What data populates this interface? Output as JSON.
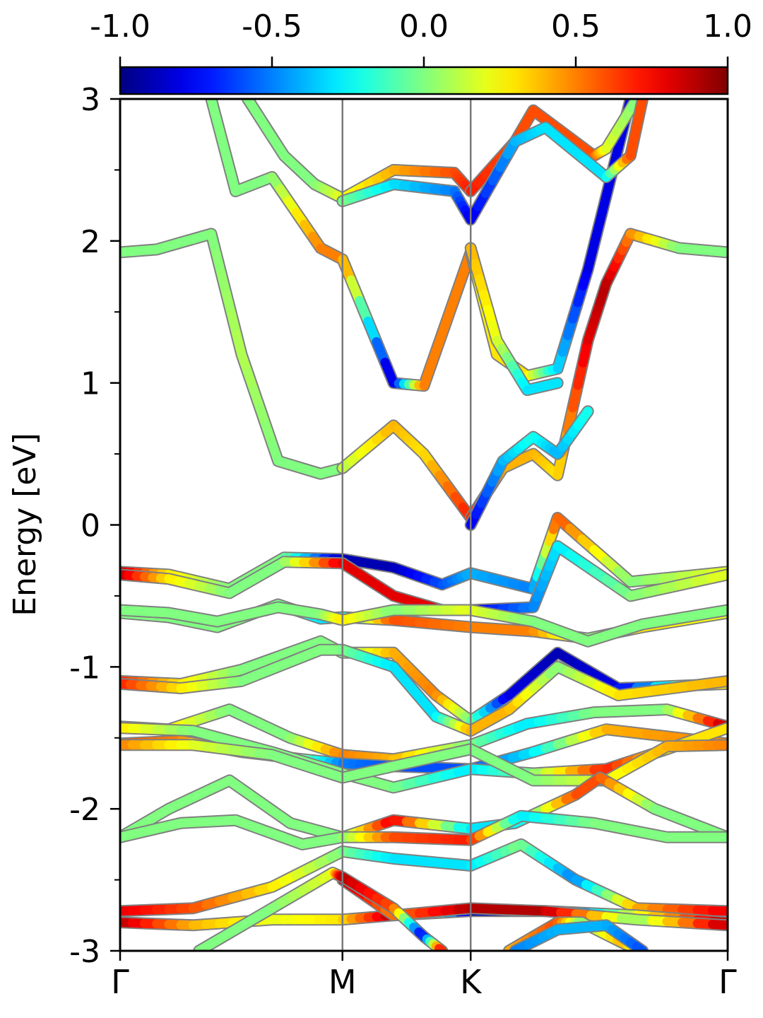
{
  "chart_data": {
    "type": "line",
    "title": "",
    "xlabel": "",
    "ylabel": "Energy [eV]",
    "ylim": [
      -3,
      3
    ],
    "y_ticks": [
      -3,
      -2,
      -1,
      0,
      1,
      2,
      3
    ],
    "y_tick_labels": [
      "-3",
      "-2",
      "-1",
      "0",
      "1",
      "2",
      "3"
    ],
    "xlim": [
      0,
      1
    ],
    "k_points": [
      {
        "label": "Γ",
        "x": 0.0
      },
      {
        "label": "M",
        "x": 0.366
      },
      {
        "label": "K",
        "x": 0.577
      },
      {
        "label": "Γ",
        "x": 1.0
      }
    ],
    "colorbar": {
      "min": -1.0,
      "max": 1.0,
      "ticks": [
        -1.0,
        -0.5,
        0.0,
        0.5,
        1.0
      ],
      "tick_labels": [
        "-1.0",
        "-0.5",
        "0.0",
        "0.5",
        "1.0"
      ],
      "colormap": "jet"
    },
    "series": [
      {
        "x": [
          0.0,
          0.06,
          0.15,
          0.2,
          0.26,
          0.33,
          0.366
        ],
        "y": [
          1.92,
          1.94,
          2.05,
          1.2,
          0.45,
          0.36,
          0.4
        ],
        "c": [
          0.0,
          0.0,
          0.0,
          0.1,
          0.0,
          0.0,
          0.0
        ]
      },
      {
        "x": [
          0.366,
          0.45,
          0.5,
          0.577
        ],
        "y": [
          0.4,
          0.7,
          0.5,
          0.05
        ],
        "c": [
          0.1,
          0.4,
          0.3,
          0.7
        ]
      },
      {
        "x": [
          0.577,
          0.63,
          0.68,
          0.72,
          0.77,
          0.8,
          0.84,
          0.92,
          1.0
        ],
        "y": [
          0.05,
          0.4,
          0.5,
          0.35,
          1.3,
          1.7,
          2.05,
          1.95,
          1.92
        ],
        "c": [
          0.7,
          0.4,
          0.4,
          0.3,
          0.8,
          0.9,
          0.5,
          0.0,
          0.0
        ]
      },
      {
        "x": [
          0.577,
          0.63,
          0.68,
          0.72,
          0.77
        ],
        "y": [
          0.0,
          0.45,
          0.62,
          0.5,
          0.8
        ],
        "c": [
          -0.8,
          -0.4,
          -0.2,
          -0.4,
          -0.2
        ]
      },
      {
        "x": [
          0.15,
          0.19,
          0.25,
          0.33,
          0.366,
          0.45,
          0.5,
          0.577
        ],
        "y": [
          3.0,
          2.35,
          2.45,
          1.95,
          1.87,
          1.0,
          0.98,
          1.92
        ],
        "c": [
          0.0,
          0.0,
          0.0,
          0.5,
          0.5,
          -0.9,
          0.5,
          0.5
        ]
      },
      {
        "x": [
          0.577,
          0.62,
          0.67,
          0.72,
          0.77,
          0.84
        ],
        "y": [
          1.92,
          1.2,
          1.05,
          1.1,
          1.8,
          3.0
        ],
        "c": [
          0.2,
          0.3,
          0.3,
          -0.3,
          -0.8,
          -0.8
        ]
      },
      {
        "x": [
          0.577,
          0.62,
          0.67,
          0.72
        ],
        "y": [
          1.95,
          1.3,
          0.95,
          1.0
        ],
        "c": [
          0.4,
          0.2,
          -0.3,
          -0.3
        ]
      },
      {
        "x": [
          0.21,
          0.27,
          0.32,
          0.366,
          0.45,
          0.55,
          0.577
        ],
        "y": [
          3.0,
          2.6,
          2.4,
          2.3,
          2.5,
          2.48,
          2.35
        ],
        "c": [
          0.0,
          0.0,
          0.0,
          0.2,
          0.4,
          0.6,
          0.7
        ]
      },
      {
        "x": [
          0.577,
          0.65,
          0.68,
          0.78,
          0.8,
          0.85
        ],
        "y": [
          2.35,
          2.7,
          2.92,
          2.6,
          2.65,
          3.0
        ],
        "c": [
          0.7,
          0.6,
          0.6,
          0.6,
          0.2,
          0.0
        ]
      },
      {
        "x": [
          0.366,
          0.45,
          0.55,
          0.577,
          0.65,
          0.7,
          0.8,
          0.84,
          0.86
        ],
        "y": [
          2.28,
          2.4,
          2.35,
          2.15,
          2.7,
          2.8,
          2.45,
          2.6,
          3.0
        ],
        "c": [
          0.0,
          -0.3,
          -0.5,
          -0.8,
          -0.4,
          -0.3,
          -0.3,
          0.6,
          0.6
        ]
      },
      {
        "x": [
          0.0,
          0.08,
          0.18,
          0.27,
          0.366,
          0.45,
          0.53,
          0.577,
          0.68,
          0.72,
          0.84,
          1.0
        ],
        "y": [
          -0.33,
          -0.35,
          -0.45,
          -0.23,
          -0.24,
          -0.3,
          -0.42,
          -0.34,
          -0.45,
          0.05,
          -0.4,
          -0.33
        ],
        "c": [
          0.9,
          0.3,
          0.0,
          0.0,
          -0.9,
          -0.9,
          -0.6,
          -0.4,
          -0.5,
          0.6,
          0.0,
          0.2
        ]
      },
      {
        "x": [
          0.0,
          0.08,
          0.18,
          0.27,
          0.366,
          0.45,
          0.53,
          0.577,
          0.68,
          0.72,
          0.84,
          1.0
        ],
        "y": [
          -0.35,
          -0.38,
          -0.48,
          -0.26,
          -0.27,
          -0.5,
          -0.6,
          -0.6,
          -0.58,
          -0.15,
          -0.5,
          -0.35
        ],
        "c": [
          0.9,
          0.3,
          0.0,
          0.0,
          0.8,
          0.8,
          0.8,
          -0.8,
          -0.5,
          -0.3,
          0.0,
          0.2
        ]
      },
      {
        "x": [
          0.0,
          0.08,
          0.16,
          0.26,
          0.33,
          0.366,
          0.45,
          0.577,
          0.68,
          0.77,
          0.86,
          1.0
        ],
        "y": [
          -0.62,
          -0.65,
          -0.72,
          -0.56,
          -0.66,
          -0.65,
          -0.67,
          -0.72,
          -0.75,
          -0.8,
          -0.72,
          -0.62
        ],
        "c": [
          0.0,
          0.0,
          0.0,
          0.0,
          -0.3,
          -0.3,
          0.6,
          0.5,
          0.5,
          0.0,
          0.3,
          0.2
        ]
      },
      {
        "x": [
          0.0,
          0.08,
          0.16,
          0.26,
          0.33,
          0.366,
          0.45,
          0.577,
          0.68,
          0.77,
          0.86,
          1.0
        ],
        "y": [
          -0.6,
          -0.62,
          -0.68,
          -0.58,
          -0.63,
          -0.67,
          -0.6,
          -0.6,
          -0.68,
          -0.82,
          -0.7,
          -0.6
        ],
        "c": [
          0.0,
          0.0,
          0.0,
          0.0,
          0.0,
          0.3,
          0.0,
          0.2,
          0.0,
          0.0,
          0.0,
          0.0
        ]
      },
      {
        "x": [
          0.0,
          0.1,
          0.2,
          0.33,
          0.366,
          0.45,
          0.52,
          0.577,
          0.64,
          0.72,
          0.82,
          1.0
        ],
        "y": [
          -1.1,
          -1.12,
          -1.02,
          -0.82,
          -0.9,
          -0.9,
          -1.2,
          -1.38,
          -1.2,
          -0.9,
          -1.15,
          -1.12
        ],
        "c": [
          0.7,
          0.3,
          0.0,
          0.0,
          0.0,
          0.4,
          0.5,
          0.0,
          -0.8,
          -0.9,
          -0.8,
          0.4
        ]
      },
      {
        "x": [
          0.0,
          0.1,
          0.2,
          0.33,
          0.366,
          0.45,
          0.52,
          0.577,
          0.64,
          0.72,
          0.82,
          1.0
        ],
        "y": [
          -1.12,
          -1.15,
          -1.1,
          -0.88,
          -0.88,
          -1.0,
          -1.35,
          -1.45,
          -1.3,
          -1.0,
          -1.2,
          -1.1
        ],
        "c": [
          0.7,
          0.3,
          0.0,
          0.0,
          0.0,
          -0.3,
          -0.3,
          0.4,
          0.4,
          0.0,
          0.3,
          0.4
        ]
      },
      {
        "x": [
          0.0,
          0.08,
          0.18,
          0.28,
          0.366,
          0.45,
          0.577,
          0.67,
          0.78,
          0.9,
          1.0
        ],
        "y": [
          -1.42,
          -1.44,
          -1.3,
          -1.5,
          -1.62,
          -1.65,
          -1.55,
          -1.4,
          -1.32,
          -1.3,
          -1.42
        ],
        "c": [
          0.9,
          0.3,
          0.0,
          0.0,
          0.5,
          0.4,
          0.0,
          -0.3,
          0.0,
          0.0,
          0.9
        ]
      },
      {
        "x": [
          0.0,
          0.1,
          0.2,
          0.3,
          0.366,
          0.45,
          0.577,
          0.68,
          0.8,
          1.0
        ],
        "y": [
          -1.54,
          -1.52,
          -1.6,
          -1.65,
          -1.68,
          -1.7,
          -1.72,
          -1.6,
          -1.44,
          -1.54
        ],
        "c": [
          0.6,
          0.5,
          0.0,
          0.0,
          -0.5,
          -0.6,
          -0.6,
          -0.3,
          0.4,
          0.5
        ]
      },
      {
        "x": [
          0.0,
          0.12,
          0.25,
          0.366,
          0.45,
          0.577,
          0.68,
          0.8,
          0.9,
          1.0
        ],
        "y": [
          -1.43,
          -1.45,
          -1.6,
          -1.75,
          -1.85,
          -1.72,
          -1.75,
          -1.72,
          -1.58,
          -1.43
        ],
        "c": [
          0.3,
          0.0,
          0.0,
          0.0,
          0.0,
          -0.3,
          0.0,
          0.7,
          0.3,
          0.3
        ]
      },
      {
        "x": [
          0.0,
          0.12,
          0.25,
          0.366,
          0.45,
          0.577,
          0.68,
          0.8,
          0.9,
          1.0
        ],
        "y": [
          -1.55,
          -1.55,
          -1.62,
          -1.78,
          -1.7,
          -1.58,
          -1.8,
          -1.8,
          -1.56,
          -1.55
        ],
        "c": [
          0.5,
          0.2,
          0.0,
          0.0,
          0.0,
          0.0,
          0.0,
          0.2,
          0.4,
          0.5
        ]
      },
      {
        "x": [
          0.0,
          0.08,
          0.18,
          0.28,
          0.366,
          0.45,
          0.577,
          0.65,
          0.75,
          0.79,
          0.88,
          1.0
        ],
        "y": [
          -2.2,
          -2.0,
          -1.8,
          -2.1,
          -2.2,
          -2.08,
          -2.14,
          -2.1,
          -1.9,
          -1.78,
          -2.0,
          -2.2
        ],
        "c": [
          0.0,
          0.0,
          0.0,
          0.0,
          0.0,
          0.8,
          -0.3,
          -0.3,
          0.6,
          0.6,
          0.0,
          0.0
        ]
      },
      {
        "x": [
          0.0,
          0.1,
          0.19,
          0.3,
          0.366,
          0.45,
          0.577,
          0.66,
          0.78,
          0.9,
          1.0
        ],
        "y": [
          -2.2,
          -2.1,
          -2.08,
          -2.25,
          -2.2,
          -2.2,
          -2.22,
          -2.05,
          -2.1,
          -2.2,
          -2.2
        ],
        "c": [
          0.0,
          0.0,
          0.0,
          0.0,
          0.0,
          0.6,
          0.7,
          -0.3,
          0.0,
          0.0,
          0.0
        ]
      },
      {
        "x": [
          0.0,
          0.12,
          0.25,
          0.366,
          0.45,
          0.577,
          0.66,
          0.75,
          0.85,
          1.0
        ],
        "y": [
          -2.72,
          -2.7,
          -2.55,
          -2.3,
          -2.35,
          -2.4,
          -2.25,
          -2.5,
          -2.7,
          -2.72
        ],
        "c": [
          0.8,
          0.6,
          0.3,
          0.0,
          -0.3,
          -0.3,
          0.0,
          -0.5,
          0.4,
          0.8
        ]
      },
      {
        "x": [
          0.0,
          0.12,
          0.25,
          0.366,
          0.45,
          0.577,
          0.7,
          0.85,
          1.0
        ],
        "y": [
          -2.8,
          -2.82,
          -2.78,
          -2.78,
          -2.75,
          -2.72,
          -2.72,
          -2.75,
          -2.8
        ],
        "c": [
          0.9,
          0.4,
          0.2,
          0.3,
          0.9,
          -0.9,
          -0.9,
          0.2,
          0.9
        ]
      },
      {
        "x": [
          0.366,
          0.45,
          0.577,
          0.7,
          0.85,
          1.0
        ],
        "y": [
          -2.5,
          -2.75,
          -2.7,
          -2.72,
          -2.78,
          -2.82
        ],
        "c": [
          0.9,
          0.5,
          0.9,
          0.9,
          0.0,
          0.9
        ]
      },
      {
        "x": [
          0.13,
          0.25,
          0.35,
          0.366,
          0.45,
          0.5,
          0.53
        ],
        "y": [
          -3.0,
          -2.7,
          -2.45,
          -2.48,
          -2.7,
          -2.9,
          -3.0
        ],
        "c": [
          0.0,
          0.0,
          0.2,
          0.9,
          0.6,
          -0.8,
          0.8
        ]
      },
      {
        "x": [
          0.64,
          0.72,
          0.76,
          0.83,
          0.86
        ],
        "y": [
          -3.0,
          -2.8,
          -2.8,
          -2.95,
          -3.0
        ],
        "c": [
          0.4,
          0.6,
          0.0,
          0.4,
          0.0
        ]
      },
      {
        "x": [
          0.65,
          0.72,
          0.8,
          0.86
        ],
        "y": [
          -3.0,
          -2.85,
          -2.82,
          -3.0
        ],
        "c": [
          -0.5,
          -0.4,
          -0.4,
          -0.6
        ]
      }
    ]
  }
}
